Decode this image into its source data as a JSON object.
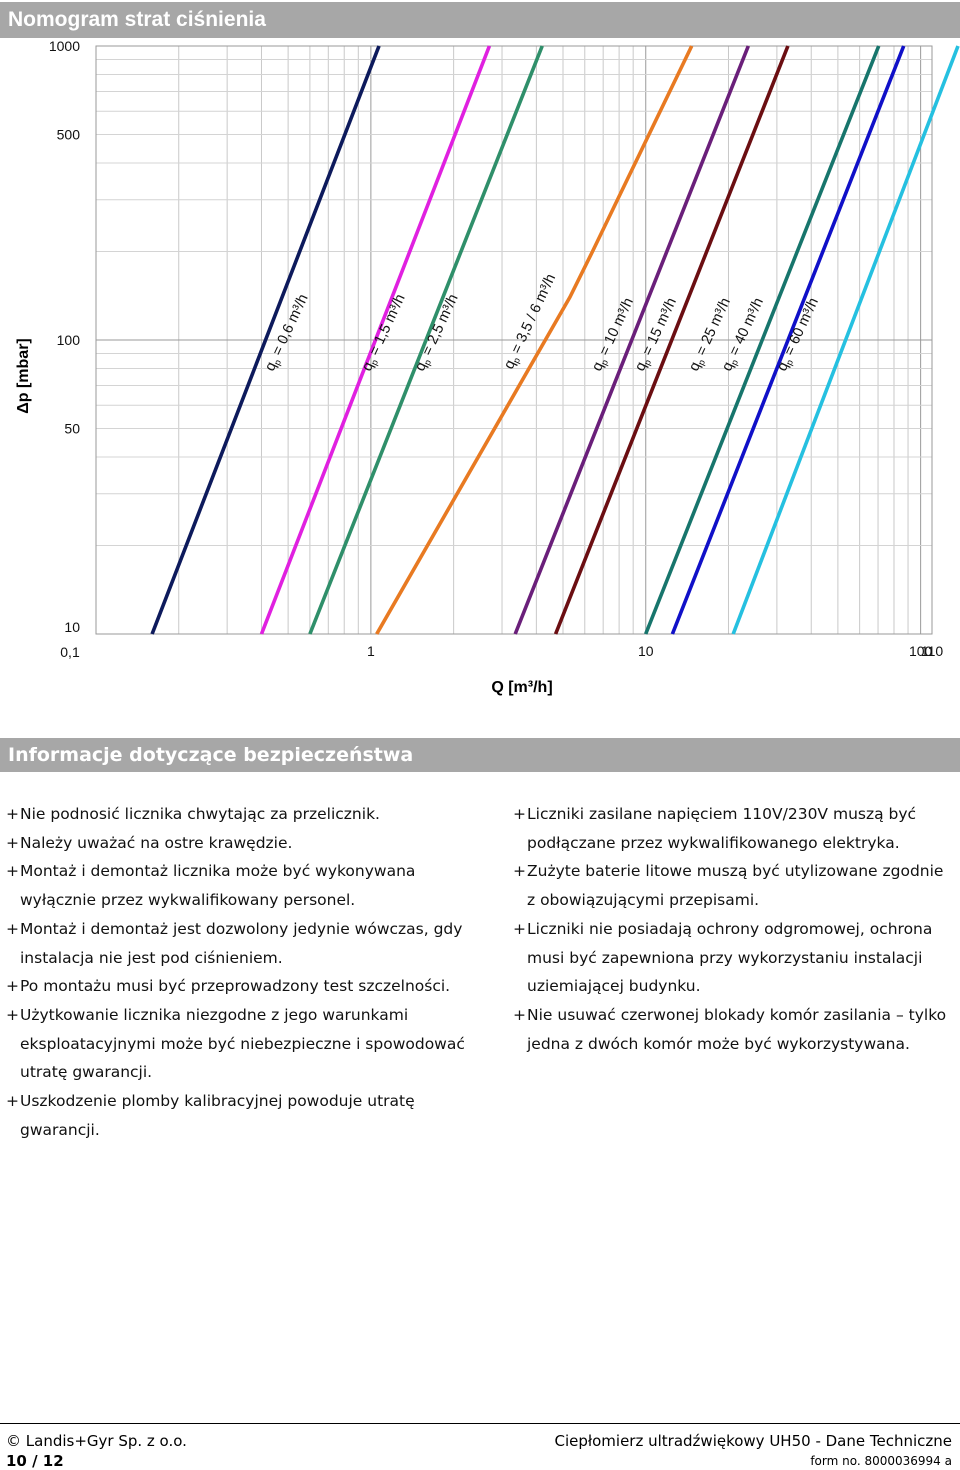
{
  "page": {
    "title": "Nomogram strat ciśnienia",
    "safety_title": "Informacje dotyczące bezpieczeństwa"
  },
  "chart_data": {
    "type": "line",
    "title": "Nomogram strat ciśnienia",
    "xlabel": "Q  [m³/h]",
    "ylabel": "Δp  [mbar]",
    "x_scale": "log",
    "y_scale": "log",
    "xlim": [
      0.1,
      110
    ],
    "ylim": [
      10,
      1000
    ],
    "x_ticks": [
      "0,1",
      "1",
      "10",
      "100",
      "110"
    ],
    "y_ticks": [
      "10",
      "50",
      "100",
      "500",
      "1000"
    ],
    "grid": true,
    "series": [
      {
        "name": "qp = 0,6 m³/h",
        "color": "#0d1a5c",
        "points": [
          [
            0.16,
            10
          ],
          [
            1.07,
            1000
          ]
        ]
      },
      {
        "name": "qp = 1,5 m³/h",
        "color": "#e020e0",
        "points": [
          [
            0.4,
            10
          ],
          [
            2.7,
            1000
          ]
        ]
      },
      {
        "name": "qp = 2,5 m³/h",
        "color": "#2f8f6a",
        "points": [
          [
            0.6,
            10
          ],
          [
            4.2,
            1000
          ]
        ]
      },
      {
        "name": "qp = 3,5 / 6 m³/h",
        "color": "#e87a22",
        "points": [
          [
            1.05,
            10
          ],
          [
            5.3,
            140
          ],
          [
            6.4,
            200
          ],
          [
            14.7,
            1000
          ]
        ]
      },
      {
        "name": "qp = 10 m³/h",
        "color": "#6a1f7a",
        "points": [
          [
            3.35,
            10
          ],
          [
            23.6,
            1000
          ]
        ]
      },
      {
        "name": "qp = 15 m³/h",
        "color": "#6b0e12",
        "points": [
          [
            4.7,
            10
          ],
          [
            32.9,
            1000
          ]
        ]
      },
      {
        "name": "qp = 25 m³/h",
        "color": "#17756c",
        "points": [
          [
            10,
            10
          ],
          [
            70.4,
            1000
          ]
        ]
      },
      {
        "name": "qp = 40 m³/h",
        "color": "#1010c8",
        "points": [
          [
            12.5,
            10
          ],
          [
            86.8,
            1000
          ]
        ]
      },
      {
        "name": "qp = 60 m³/h",
        "color": "#25c0e0",
        "points": [
          [
            20.8,
            10
          ],
          [
            136.8,
            1000
          ]
        ]
      }
    ],
    "series_labels": [
      {
        "text": "qp = 0,6 m³/h",
        "sub": "p",
        "base": "q",
        "rest": " = 0,6 m³/h"
      },
      {
        "text": "qp = 1,5 m³/h",
        "sub": "p",
        "base": "q",
        "rest": " = 1,5 m³/h"
      },
      {
        "text": "qp = 2,5 m³/h",
        "sub": "p",
        "base": "q",
        "rest": " = 2,5 m³/h"
      },
      {
        "text": "qp = 3,5 / 6 m³/h",
        "sub": "p",
        "base": "q",
        "rest": " = 3,5 / 6 m³/h"
      },
      {
        "text": "qp = 10 m³/h",
        "sub": "p",
        "base": "q",
        "rest": " = 10 m³/h"
      },
      {
        "text": "qp = 15 m³/h",
        "sub": "p",
        "base": "q",
        "rest": " = 15 m³/h"
      },
      {
        "text": "qp = 25 m³/h",
        "sub": "p",
        "base": "q",
        "rest": " = 25 m³/h"
      },
      {
        "text": "qp = 40 m³/h",
        "sub": "p",
        "base": "q",
        "rest": " = 40 m³/h"
      },
      {
        "text": "qp = 60 m³/h",
        "sub": "p",
        "base": "q",
        "rest": " = 60 m³/h"
      }
    ]
  },
  "safety": {
    "left": [
      "Nie podnosić licznika chwytając za przelicznik.",
      "Należy uważać na ostre krawędzie.",
      "Montaż i demontaż licznika może być wykonywana wyłącznie przez wykwalifikowany personel.",
      "Montaż i demontaż jest dozwolony jedynie wówczas, gdy instalacja nie jest pod ciśnieniem.",
      "Po montażu musi być przeprowadzony test szczelności.",
      "Użytkowanie licznika niezgodne z jego warunkami eksploatacyjnymi może być niebezpieczne i spowodować utratę gwarancji.",
      "Uszkodzenie plomby kalibracyjnej powoduje utratę gwarancji."
    ],
    "right": [
      "Liczniki zasilane napięciem 110V/230V muszą być podłączane przez wykwalifikowanego elektryka.",
      "Zużyte baterie litowe muszą być utylizowane zgodnie z obowiązującymi przepisami.",
      "Liczniki nie posiadają ochrony odgromowej, ochrona musi być zapewniona przy wykorzystaniu instalacji uziemiającej budynku.",
      "Nie usuwać czerwonej blokady komór zasilania – tylko jedna z dwóch komór może być wykorzystywana."
    ],
    "bullet": "+"
  },
  "footer": {
    "copyright": "© Landis+Gyr Sp. z o.o.",
    "page": "10 / 12",
    "document": "Ciepłomierz ultradźwiękowy UH50 - Dane Techniczne",
    "form": "form no. 8000036994 a"
  }
}
